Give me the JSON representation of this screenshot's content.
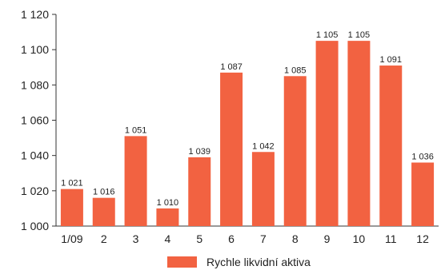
{
  "chart_data": {
    "type": "bar",
    "title": "",
    "xlabel": "",
    "ylabel": "",
    "categories": [
      "1/09",
      "2",
      "3",
      "4",
      "5",
      "6",
      "7",
      "8",
      "9",
      "10",
      "11",
      "12"
    ],
    "series": [
      {
        "name": "Rychle likvidní aktiva",
        "color": "#f26241",
        "values": [
          1021,
          1016,
          1051,
          1010,
          1039,
          1087,
          1042,
          1085,
          1105,
          1105,
          1091,
          1036
        ],
        "value_labels": [
          "1 021",
          "1 016",
          "1 051",
          "1 010",
          "1 039",
          "1 087",
          "1 042",
          "1 085",
          "1 105",
          "1 105",
          "1 091",
          "1 036"
        ]
      }
    ],
    "ylim": [
      1000,
      1120
    ],
    "yticks": [
      1000,
      1020,
      1040,
      1060,
      1080,
      1100,
      1120
    ],
    "ytick_labels": [
      "1 000",
      "1 020",
      "1 040",
      "1 060",
      "1 080",
      "1 100",
      "1 120"
    ],
    "grid": false,
    "legend_position": "bottom-center"
  }
}
